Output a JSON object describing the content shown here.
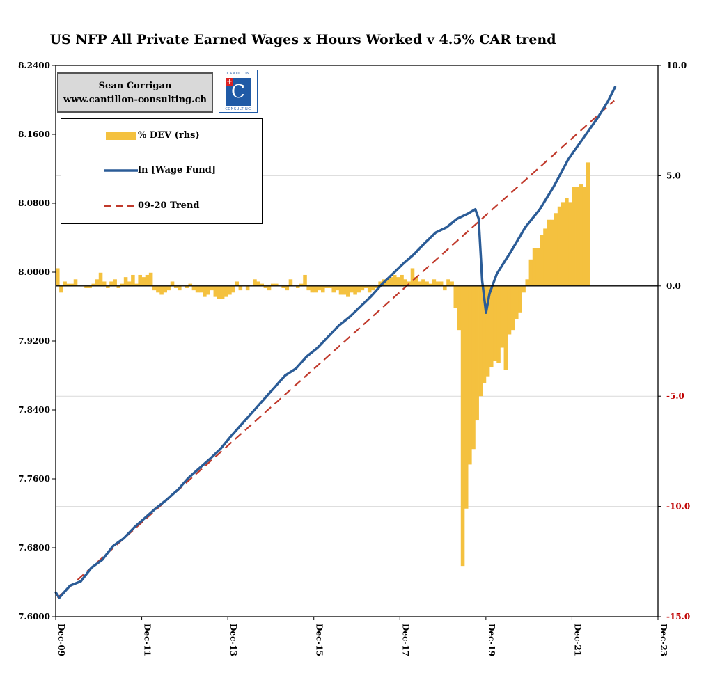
{
  "title": "US NFP All Private Earned Wages x Hours Worked v 4.5% CAR trend",
  "branding": {
    "author": "Sean Corrigan",
    "website": "www.cantillon-consulting.ch",
    "logo_top": "CANTILLON",
    "logo_letter": "C",
    "logo_bottom": "CONSULTING"
  },
  "colors": {
    "bar": "#F4C13F",
    "line": "#2B5C97",
    "trend": "#C0392B",
    "negative_tick": "#C00000",
    "grid": "#D9D9D9"
  },
  "chart_data": {
    "type": "line+bar",
    "title": "US NFP All Private Earned Wages x Hours Worked v 4.5% CAR trend",
    "x_ticks": [
      "Dec-09",
      "Dec-11",
      "Dec-13",
      "Dec-15",
      "Dec-17",
      "Dec-19",
      "Dec-21",
      "Dec-23"
    ],
    "x_range": [
      2009.917,
      2023.917
    ],
    "y_left": {
      "ticks": [
        "8.2400",
        "8.1600",
        "8.0800",
        "8.0000",
        "7.9200",
        "7.8400",
        "7.7600",
        "7.6800",
        "7.6000"
      ],
      "range": [
        7.6,
        8.24
      ]
    },
    "y_right": {
      "ticks": [
        "10.0",
        "5.0",
        "0.0",
        "-5.0",
        "-10.0",
        "-15.0"
      ],
      "range": [
        -15,
        10
      ]
    },
    "legend": [
      "% DEV (rhs)",
      "ln [Wage Fund]",
      "09-20 Trend"
    ],
    "trend": {
      "name": "09-20 Trend",
      "start": [
        2009.96,
        7.622
      ],
      "slope_per_year": 0.0446,
      "end_x": 2022.9
    },
    "wage_fund": {
      "name": "ln [Wage Fund]",
      "points": [
        [
          2009.92,
          7.628
        ],
        [
          2010.0,
          7.622
        ],
        [
          2010.25,
          7.636
        ],
        [
          2010.5,
          7.641
        ],
        [
          2010.75,
          7.657
        ],
        [
          2011.0,
          7.666
        ],
        [
          2011.25,
          7.682
        ],
        [
          2011.5,
          7.691
        ],
        [
          2011.75,
          7.704
        ],
        [
          2012.0,
          7.715
        ],
        [
          2012.25,
          7.726
        ],
        [
          2012.5,
          7.736
        ],
        [
          2012.75,
          7.747
        ],
        [
          2013.0,
          7.761
        ],
        [
          2013.25,
          7.772
        ],
        [
          2013.5,
          7.783
        ],
        [
          2013.75,
          7.795
        ],
        [
          2014.0,
          7.81
        ],
        [
          2014.25,
          7.824
        ],
        [
          2014.5,
          7.838
        ],
        [
          2014.75,
          7.852
        ],
        [
          2015.0,
          7.866
        ],
        [
          2015.25,
          7.88
        ],
        [
          2015.5,
          7.888
        ],
        [
          2015.75,
          7.902
        ],
        [
          2016.0,
          7.912
        ],
        [
          2016.25,
          7.925
        ],
        [
          2016.5,
          7.938
        ],
        [
          2016.75,
          7.948
        ],
        [
          2017.0,
          7.96
        ],
        [
          2017.25,
          7.972
        ],
        [
          2017.5,
          7.986
        ],
        [
          2017.75,
          7.998
        ],
        [
          2018.0,
          8.01
        ],
        [
          2018.25,
          8.021
        ],
        [
          2018.5,
          8.034
        ],
        [
          2018.75,
          8.046
        ],
        [
          2019.0,
          8.052
        ],
        [
          2019.25,
          8.062
        ],
        [
          2019.5,
          8.068
        ],
        [
          2019.67,
          8.073
        ],
        [
          2019.75,
          8.062
        ],
        [
          2019.83,
          7.99
        ],
        [
          2019.92,
          7.953
        ],
        [
          2020.0,
          7.975
        ],
        [
          2020.17,
          7.998
        ],
        [
          2020.5,
          8.024
        ],
        [
          2020.83,
          8.052
        ],
        [
          2021.17,
          8.073
        ],
        [
          2021.5,
          8.1
        ],
        [
          2021.83,
          8.131
        ],
        [
          2022.17,
          8.155
        ],
        [
          2022.5,
          8.178
        ],
        [
          2022.75,
          8.198
        ],
        [
          2022.92,
          8.215
        ]
      ]
    },
    "pct_dev": {
      "name": "% DEV (rhs)",
      "start_x": 2009.917,
      "step_x": 0.08333,
      "values": [
        0.8,
        -0.3,
        0.2,
        0.1,
        0.1,
        0.3,
        0.0,
        0.0,
        -0.1,
        -0.1,
        0.1,
        0.3,
        0.6,
        0.2,
        -0.1,
        0.2,
        0.3,
        -0.1,
        0.1,
        0.4,
        0.2,
        0.5,
        0.1,
        0.5,
        0.4,
        0.5,
        0.6,
        -0.2,
        -0.3,
        -0.4,
        -0.3,
        -0.2,
        0.2,
        -0.1,
        -0.2,
        0.0,
        -0.1,
        0.1,
        -0.2,
        -0.3,
        -0.3,
        -0.5,
        -0.4,
        -0.2,
        -0.5,
        -0.6,
        -0.6,
        -0.5,
        -0.4,
        -0.3,
        0.2,
        -0.2,
        0.0,
        -0.2,
        0.0,
        0.3,
        0.2,
        0.1,
        -0.1,
        -0.2,
        0.1,
        0.1,
        0.0,
        -0.1,
        -0.2,
        0.3,
        0.0,
        -0.1,
        0.1,
        0.5,
        -0.2,
        -0.3,
        -0.3,
        -0.2,
        -0.3,
        -0.1,
        -0.1,
        -0.3,
        -0.2,
        -0.4,
        -0.4,
        -0.5,
        -0.3,
        -0.4,
        -0.3,
        -0.2,
        -0.1,
        -0.3,
        -0.2,
        -0.1,
        0.2,
        0.3,
        0.3,
        0.4,
        0.5,
        0.4,
        0.5,
        0.3,
        0.2,
        0.8,
        0.4,
        0.2,
        0.3,
        0.2,
        0.1,
        0.3,
        0.2,
        0.2,
        -0.2,
        0.3,
        0.2,
        -1.0,
        -2.0,
        -12.7,
        -10.1,
        -8.1,
        -7.4,
        -6.1,
        -5.0,
        -4.4,
        -4.1,
        -3.7,
        -3.4,
        -3.5,
        -2.8,
        -3.8,
        -2.2,
        -2.0,
        -1.5,
        -1.2,
        -0.3,
        0.3,
        1.2,
        1.7,
        1.7,
        2.3,
        2.6,
        3.0,
        3.0,
        3.3,
        3.6,
        3.8,
        4.0,
        3.8,
        4.5,
        4.5,
        4.6,
        4.5,
        5.6
      ]
    }
  }
}
